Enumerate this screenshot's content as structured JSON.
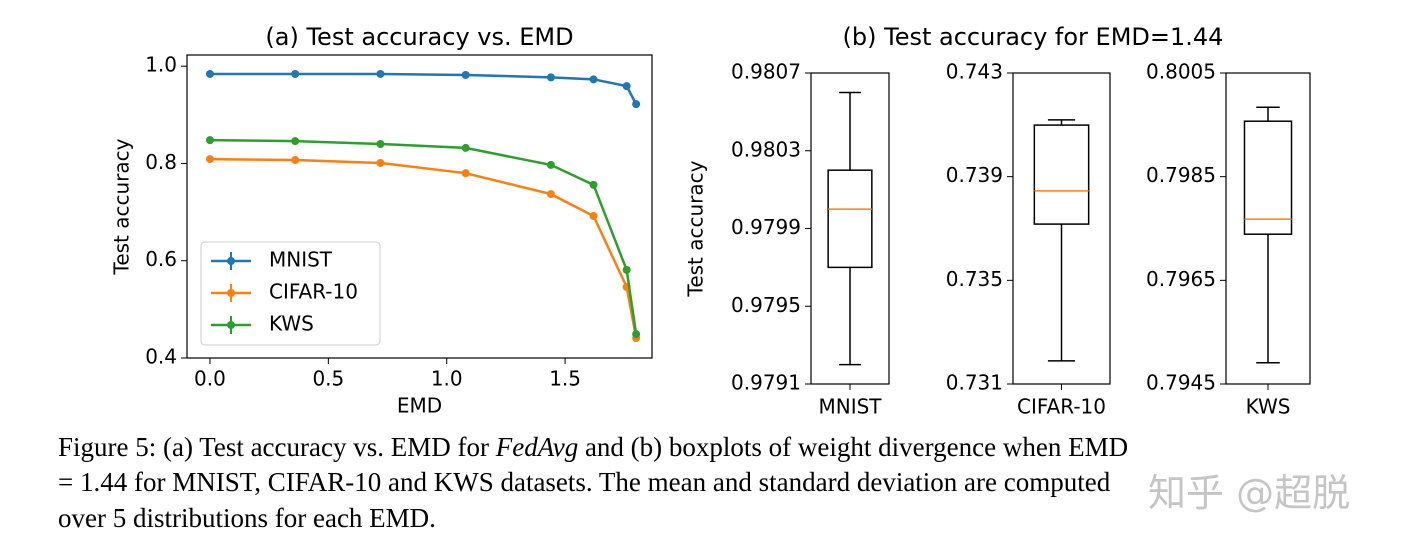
{
  "chart_data": [
    {
      "type": "line",
      "title": "(a) Test accuracy vs. EMD",
      "x_label": "EMD",
      "y_label": "Test accuracy",
      "x": [
        0,
        0.36,
        0.72,
        1.08,
        1.44,
        1.62,
        1.76,
        1.8
      ],
      "series": [
        {
          "name": "MNIST",
          "color": "#1f77b4",
          "values": [
            0.984,
            0.984,
            0.984,
            0.982,
            0.977,
            0.973,
            0.959,
            0.922
          ]
        },
        {
          "name": "CIFAR-10",
          "color": "#ff7f0e",
          "values": [
            0.809,
            0.807,
            0.801,
            0.78,
            0.737,
            0.692,
            0.546,
            0.441
          ]
        },
        {
          "name": "KWS",
          "color": "#2ca02c",
          "values": [
            0.848,
            0.846,
            0.84,
            0.832,
            0.797,
            0.756,
            0.581,
            0.449
          ]
        }
      ],
      "xlim": [
        -0.097,
        1.867
      ],
      "ylim": [
        0.4,
        1.023
      ],
      "xticks": [
        {
          "value": 0,
          "label": "0.0"
        },
        0.5,
        {
          "value": 1,
          "label": "1.0"
        },
        1.5
      ],
      "yticks": [
        0.4,
        0.6,
        0.8,
        {
          "value": 1,
          "label": "1.0"
        }
      ],
      "legend": "lower left"
    },
    {
      "type": "box",
      "title": "(b) Test accuracy for EMD=1.44",
      "y_label": "Test accuracy",
      "box_color": "#000000",
      "median_color": "#ff7f0e",
      "panels": [
        {
          "category": "MNIST",
          "ylim": [
            0.9791,
            0.9807
          ],
          "yticks": [
            0.9791,
            0.9795,
            0.9799,
            0.9803,
            0.9807
          ],
          "whislo": 0.9792,
          "q1": 0.9797,
          "med": 0.98,
          "q3": 0.9802,
          "whishi": 0.9806
        },
        {
          "category": "CIFAR-10",
          "ylim": [
            0.731,
            0.743
          ],
          "yticks": [
            0.731,
            0.735,
            0.739,
            0.743
          ],
          "whislo": 0.73189,
          "q1": 0.73717,
          "med": 0.73845,
          "q3": 0.74099,
          "whishi": 0.74119
        },
        {
          "category": "KWS",
          "ylim": [
            0.7945,
            0.8005
          ],
          "yticks": [
            0.7945,
            0.7965,
            0.7985,
            0.8005
          ],
          "whislo": 0.79491,
          "q1": 0.79739,
          "med": 0.79768,
          "q3": 0.79957,
          "whishi": 0.79984
        }
      ]
    }
  ],
  "caption": {
    "line1_start": "Figure 5: (a) Test accuracy vs. EMD for ",
    "emphasis": "FedAvg",
    "line1_end": " and (b) boxplots of weight divergence when EMD",
    "line2": "= 1.44 for MNIST, CIFAR-10 and KWS datasets. The mean and standard deviation are computed",
    "line3": "over 5 distributions for each EMD."
  },
  "watermark": "知乎 @超脱"
}
